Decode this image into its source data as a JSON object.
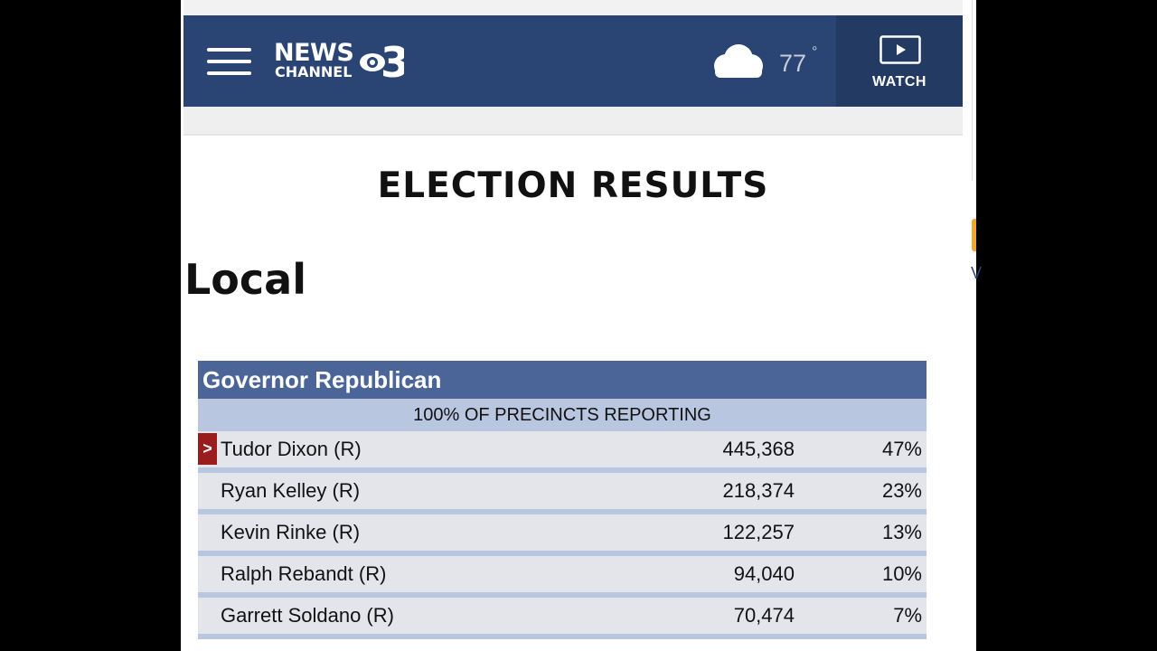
{
  "header": {
    "logo_line1": "NEWS",
    "logo_line2": "CHANNEL",
    "logo_number": "3",
    "weather": {
      "icon": "cloud-icon",
      "temperature": "77",
      "degree_symbol": "°"
    },
    "watch_label": "WATCH"
  },
  "page_title": "ELECTION RESULTS",
  "section_title": "Local",
  "race": {
    "title": "Governor Republican",
    "reporting": "100% OF PRECINCTS REPORTING",
    "winner_marker": ">",
    "candidates": [
      {
        "name": "Tudor Dixon (R)",
        "votes": "445,368",
        "pct": "47%",
        "winner": true
      },
      {
        "name": "Ryan Kelley (R)",
        "votes": "218,374",
        "pct": "23%",
        "winner": false
      },
      {
        "name": "Kevin Rinke (R)",
        "votes": "122,257",
        "pct": "13%",
        "winner": false
      },
      {
        "name": "Ralph Rebandt (R)",
        "votes": "94,040",
        "pct": "10%",
        "winner": false
      },
      {
        "name": "Garrett Soldano (R)",
        "votes": "70,474",
        "pct": "7%",
        "winner": false
      }
    ]
  },
  "side_text": "V",
  "colors": {
    "header_bg": "#2a4473",
    "watch_bg": "#233a63",
    "race_header": "#4b6598",
    "reporting_bg": "#b8c6e0",
    "row_bg": "#e3e5eb",
    "winner_marker": "#9b1c1c"
  }
}
